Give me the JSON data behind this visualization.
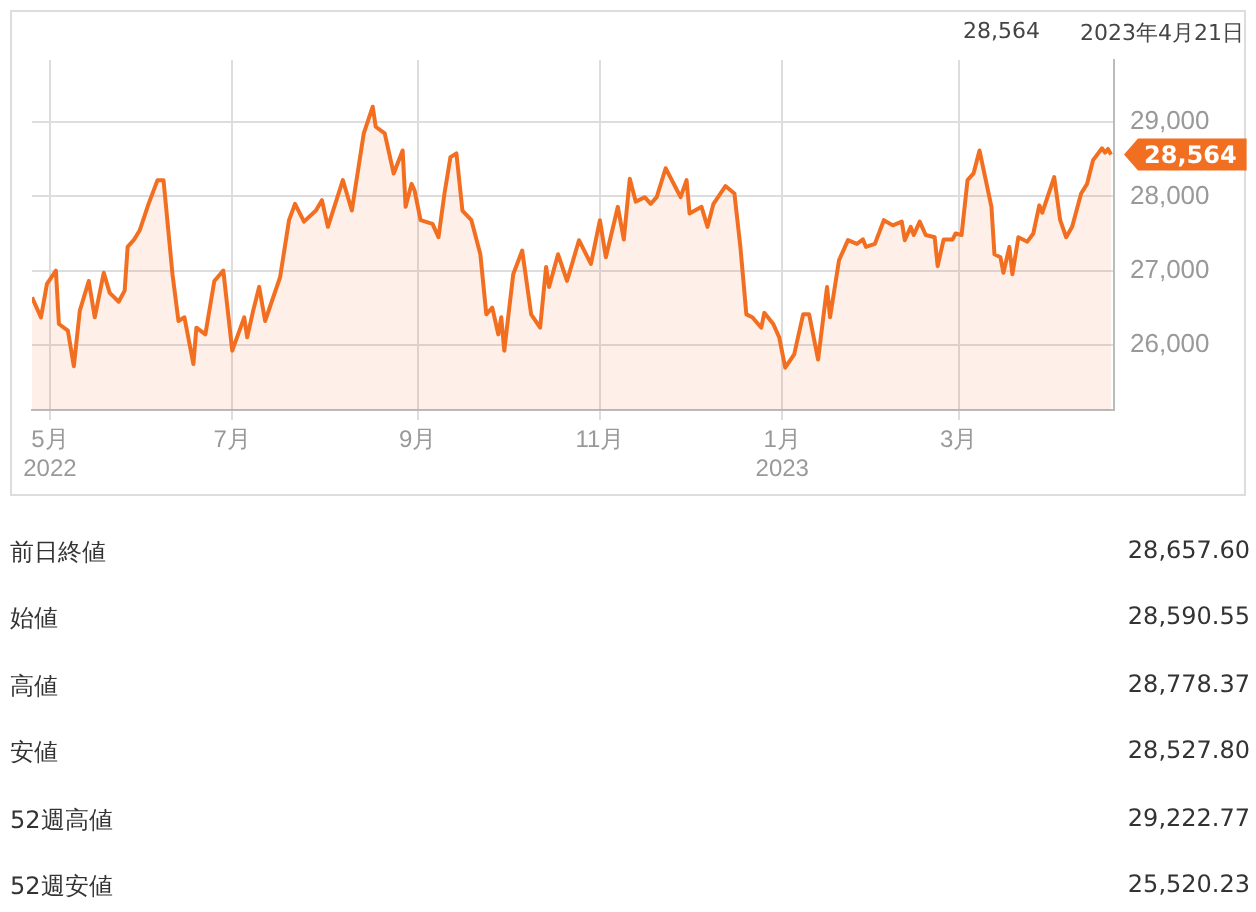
{
  "chart_data": {
    "type": "area",
    "x": [
      "2022-04-25",
      "2022-04-28",
      "2022-04-30",
      "2022-05-03",
      "2022-05-04",
      "2022-05-07",
      "2022-05-09",
      "2022-05-11",
      "2022-05-14",
      "2022-05-16",
      "2022-05-19",
      "2022-05-21",
      "2022-05-24",
      "2022-05-26",
      "2022-05-27",
      "2022-05-29",
      "2022-05-31",
      "2022-06-03",
      "2022-06-06",
      "2022-06-08",
      "2022-06-11",
      "2022-06-13",
      "2022-06-15",
      "2022-06-18",
      "2022-06-19",
      "2022-06-22",
      "2022-06-25",
      "2022-06-28",
      "2022-07-01",
      "2022-07-05",
      "2022-07-06",
      "2022-07-08",
      "2022-07-10",
      "2022-07-12",
      "2022-07-17",
      "2022-07-20",
      "2022-07-22",
      "2022-07-25",
      "2022-07-29",
      "2022-07-31",
      "2022-08-02",
      "2022-08-07",
      "2022-08-10",
      "2022-08-14",
      "2022-08-17",
      "2022-08-18",
      "2022-08-21",
      "2022-08-24",
      "2022-08-27",
      "2022-08-28",
      "2022-08-30",
      "2022-08-31",
      "2022-09-02",
      "2022-09-06",
      "2022-09-08",
      "2022-09-10",
      "2022-09-12",
      "2022-09-14",
      "2022-09-16",
      "2022-09-19",
      "2022-09-22",
      "2022-09-24",
      "2022-09-26",
      "2022-09-28",
      "2022-09-29",
      "2022-09-30",
      "2022-10-03",
      "2022-10-06",
      "2022-10-09",
      "2022-10-12",
      "2022-10-14",
      "2022-10-15",
      "2022-10-18",
      "2022-10-21",
      "2022-10-25",
      "2022-10-29",
      "2022-11-01",
      "2022-11-03",
      "2022-11-07",
      "2022-11-09",
      "2022-11-11",
      "2022-11-13",
      "2022-11-16",
      "2022-11-18",
      "2022-11-20",
      "2022-11-23",
      "2022-11-28",
      "2022-11-30",
      "2022-12-01",
      "2022-12-05",
      "2022-12-07",
      "2022-12-09",
      "2022-12-13",
      "2022-12-16",
      "2022-12-18",
      "2022-12-20",
      "2022-12-22",
      "2022-12-25",
      "2022-12-26",
      "2022-12-29",
      "2022-12-31",
      "2023-01-02",
      "2023-01-05",
      "2023-01-08",
      "2023-01-10",
      "2023-01-13",
      "2023-01-16",
      "2023-01-17",
      "2023-01-20",
      "2023-01-22",
      "2023-01-23",
      "2023-01-26",
      "2023-01-28",
      "2023-01-29",
      "2023-02-01",
      "2023-02-04",
      "2023-02-07",
      "2023-02-10",
      "2023-02-11",
      "2023-02-13",
      "2023-02-14",
      "2023-02-16",
      "2023-02-18",
      "2023-02-21",
      "2023-02-22",
      "2023-02-24",
      "2023-02-27",
      "2023-02-28",
      "2023-03-02",
      "2023-03-04",
      "2023-03-06",
      "2023-03-08",
      "2023-03-12",
      "2023-03-13",
      "2023-03-15",
      "2023-03-16",
      "2023-03-18",
      "2023-03-19",
      "2023-03-21",
      "2023-03-24",
      "2023-03-26",
      "2023-03-28",
      "2023-03-29",
      "2023-04-02",
      "2023-04-04",
      "2023-04-06",
      "2023-04-08",
      "2023-04-11",
      "2023-04-13",
      "2023-04-15",
      "2023-04-18",
      "2023-04-19",
      "2023-04-20",
      "2023-04-21"
    ],
    "series": [
      {
        "color": "#f26f21",
        "values": [
          26640,
          26370,
          26820,
          27000,
          26280,
          26190,
          25710,
          26460,
          26860,
          26370,
          26970,
          26700,
          26580,
          26730,
          27320,
          27410,
          27540,
          27900,
          28220,
          28220,
          26950,
          26320,
          26370,
          25740,
          26230,
          26140,
          26860,
          27000,
          25920,
          26370,
          26100,
          26460,
          26780,
          26320,
          26910,
          27680,
          27900,
          27660,
          27810,
          27950,
          27590,
          28220,
          27810,
          28850,
          29210,
          28940,
          28850,
          28310,
          28620,
          27860,
          28170,
          28080,
          27680,
          27630,
          27450,
          28040,
          28530,
          28580,
          27810,
          27680,
          27220,
          26410,
          26500,
          26140,
          26370,
          25920,
          26950,
          27270,
          26410,
          26230,
          27050,
          26780,
          27220,
          26860,
          27410,
          27090,
          27680,
          27180,
          27860,
          27420,
          28240,
          27930,
          27990,
          27900,
          27990,
          28380,
          27990,
          28220,
          27770,
          27860,
          27590,
          27900,
          28140,
          28040,
          27320,
          26410,
          26370,
          26230,
          26430,
          26280,
          26100,
          25690,
          25870,
          26410,
          26410,
          25800,
          26780,
          26370,
          27140,
          27320,
          27410,
          27360,
          27420,
          27320,
          27360,
          27680,
          27610,
          27660,
          27410,
          27590,
          27480,
          27660,
          27480,
          27450,
          27060,
          27420,
          27420,
          27500,
          27480,
          28220,
          28310,
          28620,
          27860,
          27220,
          27180,
          26970,
          27320,
          26950,
          27450,
          27390,
          27500,
          27880,
          27780,
          28260,
          27680,
          27450,
          27590,
          28040,
          28170,
          28490,
          28650,
          28590,
          28640,
          28564
        ]
      }
    ],
    "xlim": [
      "2022-04-25",
      "2023-04-22"
    ],
    "xticks": [
      {
        "value": "2022-05-01",
        "label": "5月\n2022"
      },
      {
        "value": "2022-07-01",
        "label": "7月"
      },
      {
        "value": "2022-09-01",
        "label": "9月"
      },
      {
        "value": "2022-11-01",
        "label": "11月"
      },
      {
        "value": "2023-01-01",
        "label": "1月\n2023"
      },
      {
        "value": "2023-03-01",
        "label": "3月"
      }
    ],
    "ylim": [
      25120,
      29840
    ],
    "yticks": [
      {
        "value": 26000,
        "label": "26,000"
      },
      {
        "value": 27000,
        "label": "27,000"
      },
      {
        "value": 28000,
        "label": "28,000"
      },
      {
        "value": 29000,
        "label": "29,000"
      }
    ],
    "grid": true,
    "annotations": [
      "28,564",
      "2023年4月21日",
      {
        "text": "28,564",
        "x": "2023-04-21",
        "y": 28564
      },
      "前日終値",
      "28,657.60",
      "始値",
      "28,590.55",
      "高値",
      "28,778.37",
      "安値",
      "28,527.80",
      "52週高値",
      "29,222.77",
      "52週安値",
      "25,520.23"
    ]
  }
}
